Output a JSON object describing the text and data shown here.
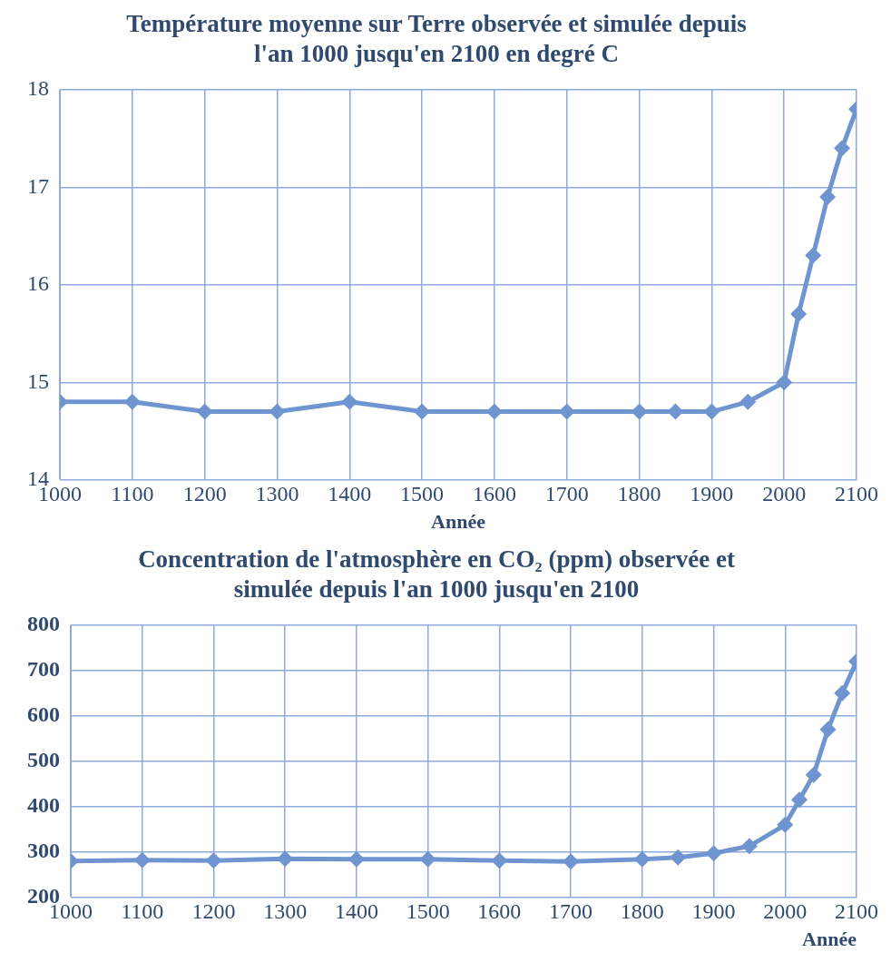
{
  "chart_data": [
    {
      "type": "line",
      "title": "Température moyenne sur Terre observée et simulée depuis l'an 1000 jusqu'en 2100 en degré C",
      "xlabel": "Année",
      "x": [
        1000,
        1100,
        1200,
        1300,
        1400,
        1500,
        1600,
        1700,
        1800,
        1850,
        1900,
        1950,
        2000,
        2020,
        2040,
        2060,
        2080,
        2100
      ],
      "series": [
        {
          "color": "#6f95d0",
          "values": [
            14.8,
            14.8,
            14.7,
            14.7,
            14.8,
            14.7,
            14.7,
            14.7,
            14.7,
            14.7,
            14.7,
            14.8,
            15.0,
            15.7,
            16.3,
            16.9,
            17.4,
            17.8
          ]
        }
      ],
      "xlim": [
        1000,
        2100
      ],
      "xticks": [
        1000,
        1100,
        1200,
        1300,
        1400,
        1500,
        1600,
        1700,
        1800,
        1900,
        2000,
        2100
      ],
      "ylim": [
        14,
        18
      ],
      "yticks": [
        14,
        15,
        16,
        17,
        18
      ],
      "grid": true,
      "legend": false,
      "marker": "diamond",
      "line_style": "solid"
    },
    {
      "type": "line",
      "title": "Concentration de l'atmosphère en CO₂ (ppm) observée et simulée depuis l'an 1000 jusqu'en 2100",
      "xlabel": "Année",
      "x": [
        1000,
        1100,
        1200,
        1300,
        1400,
        1500,
        1600,
        1700,
        1800,
        1850,
        1900,
        1950,
        2000,
        2020,
        2040,
        2060,
        2080,
        2100
      ],
      "series": [
        {
          "color": "#6f95d0",
          "values": [
            280,
            282,
            281,
            285,
            284,
            284,
            281,
            279,
            284,
            288,
            297,
            313,
            360,
            415,
            470,
            570,
            650,
            720
          ]
        }
      ],
      "xlim": [
        1000,
        2100
      ],
      "xticks": [
        1000,
        1100,
        1200,
        1300,
        1400,
        1500,
        1600,
        1700,
        1800,
        1900,
        2000,
        2100
      ],
      "ylim": [
        200,
        800
      ],
      "yticks": [
        200,
        300,
        400,
        500,
        600,
        700,
        800
      ],
      "grid": true,
      "legend": false,
      "marker": "diamond",
      "line_style": "solid"
    }
  ]
}
